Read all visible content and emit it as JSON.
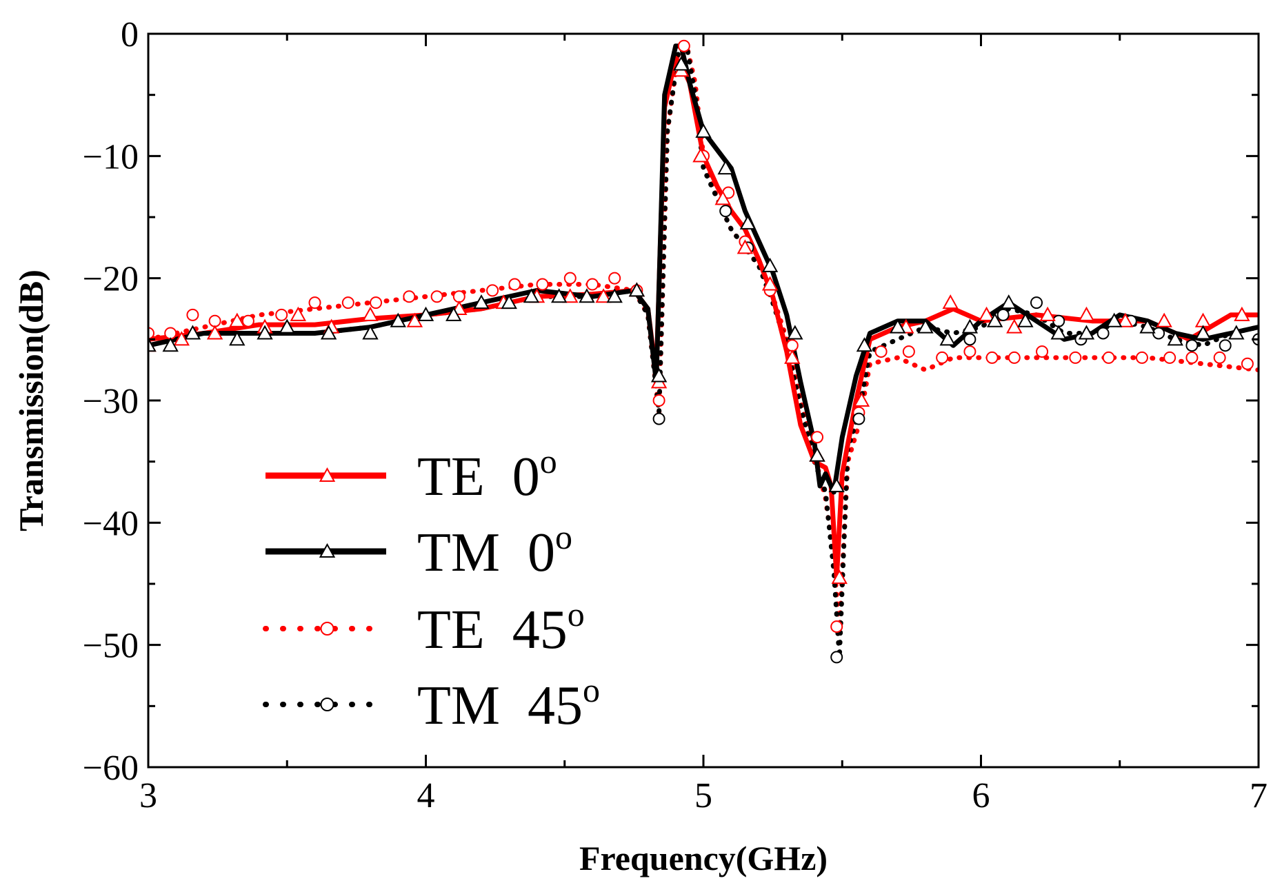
{
  "chart_data": {
    "type": "line",
    "title": "",
    "xlabel": "Frequency(GHz)",
    "ylabel": "Transmission(dB)",
    "xlim": [
      3,
      7
    ],
    "ylim": [
      -60,
      0
    ],
    "x_ticks": [
      3,
      4,
      5,
      6,
      7
    ],
    "x_tick_labels": [
      "3",
      "4",
      "5",
      "6",
      "7"
    ],
    "y_ticks": [
      0,
      -10,
      -20,
      -30,
      -40,
      -50,
      -60
    ],
    "y_tick_labels": [
      "0",
      "−10",
      "−20",
      "−30",
      "−40",
      "−50",
      "−60"
    ],
    "grid": false,
    "legend_position": "lower-left",
    "series": [
      {
        "name": "TE 0",
        "name_main": "TE  0",
        "name_sup": "o",
        "color": "#ff0000",
        "line": "solid",
        "marker": "triangle",
        "x": [
          3.0,
          3.2,
          3.4,
          3.6,
          3.8,
          4.0,
          4.2,
          4.4,
          4.6,
          4.75,
          4.8,
          4.83,
          4.86,
          4.9,
          4.92,
          4.95,
          5.0,
          5.05,
          5.1,
          5.15,
          5.2,
          5.25,
          5.3,
          5.35,
          5.4,
          5.44,
          5.46,
          5.48,
          5.5,
          5.55,
          5.6,
          5.7,
          5.8,
          5.9,
          6.0,
          6.2,
          6.4,
          6.6,
          6.75,
          6.9,
          7.0
        ],
        "y": [
          -25.0,
          -24.5,
          -23.8,
          -23.8,
          -23.3,
          -23.0,
          -22.5,
          -21.5,
          -21.3,
          -21.0,
          -22.5,
          -28.0,
          -6.0,
          -2.0,
          -2.5,
          -4.0,
          -10.0,
          -12.5,
          -14.5,
          -16.0,
          -18.5,
          -21.5,
          -26.0,
          -32.0,
          -35.0,
          -35.5,
          -37.0,
          -44.5,
          -36.0,
          -30.0,
          -25.0,
          -24.0,
          -23.5,
          -22.5,
          -23.5,
          -23.0,
          -23.5,
          -23.5,
          -25.0,
          -23.0,
          -23.0
        ],
        "marker_x": [
          3.0,
          3.12,
          3.24,
          3.32,
          3.42,
          3.54,
          3.66,
          3.8,
          3.96,
          4.12,
          4.28,
          4.4,
          4.52,
          4.64,
          4.76,
          4.84,
          4.92,
          4.99,
          5.07,
          5.15,
          5.24,
          5.32,
          5.41,
          5.49,
          5.57,
          5.73,
          5.89,
          6.02,
          6.12,
          6.24,
          6.38,
          6.52,
          6.66,
          6.8,
          6.94
        ],
        "marker_y": [
          -25.5,
          -25.0,
          -24.5,
          -23.5,
          -24.0,
          -23.0,
          -24.0,
          -23.0,
          -23.5,
          -22.5,
          -22.0,
          -21.5,
          -21.5,
          -21.5,
          -21.0,
          -28.5,
          -3.0,
          -10.0,
          -13.5,
          -17.5,
          -20.5,
          -26.5,
          -34.5,
          -44.5,
          -30.0,
          -24.0,
          -22.0,
          -23.0,
          -24.0,
          -23.0,
          -23.0,
          -23.5,
          -23.5,
          -23.5,
          -23.0
        ]
      },
      {
        "name": "TM 0",
        "name_main": "TM  0",
        "name_sup": "o",
        "color": "#000000",
        "line": "solid",
        "marker": "triangle",
        "x": [
          3.0,
          3.2,
          3.4,
          3.6,
          3.8,
          4.0,
          4.2,
          4.4,
          4.6,
          4.75,
          4.8,
          4.83,
          4.86,
          4.9,
          4.92,
          4.95,
          5.0,
          5.05,
          5.1,
          5.15,
          5.2,
          5.25,
          5.3,
          5.35,
          5.4,
          5.42,
          5.44,
          5.47,
          5.5,
          5.55,
          5.6,
          5.7,
          5.8,
          5.9,
          6.0,
          6.1,
          6.2,
          6.3,
          6.4,
          6.5,
          6.6,
          6.7,
          6.8,
          6.9,
          7.0
        ],
        "y": [
          -25.5,
          -24.5,
          -24.5,
          -24.5,
          -24.0,
          -23.0,
          -22.0,
          -21.0,
          -21.5,
          -21.0,
          -22.5,
          -28.5,
          -5.0,
          -1.0,
          -1.0,
          -4.0,
          -8.0,
          -9.5,
          -11.0,
          -14.5,
          -17.0,
          -19.5,
          -23.0,
          -28.5,
          -33.5,
          -37.0,
          -36.0,
          -37.5,
          -33.0,
          -28.0,
          -24.5,
          -23.5,
          -23.5,
          -25.5,
          -23.5,
          -22.0,
          -23.5,
          -25.0,
          -24.5,
          -23.0,
          -23.5,
          -24.5,
          -25.0,
          -24.5,
          -24.0
        ],
        "marker_x": [
          3.0,
          3.08,
          3.16,
          3.32,
          3.42,
          3.5,
          3.65,
          3.8,
          3.9,
          4.0,
          4.1,
          4.2,
          4.3,
          4.38,
          4.48,
          4.58,
          4.68,
          4.76,
          4.84,
          4.92,
          5.0,
          5.08,
          5.16,
          5.24,
          5.33,
          5.41,
          5.48,
          5.58,
          5.7,
          5.8,
          5.88,
          5.96,
          6.05,
          6.1,
          6.16,
          6.28,
          6.38,
          6.48,
          6.6,
          6.7,
          6.8,
          6.92
        ],
        "marker_y": [
          -25.5,
          -25.5,
          -24.5,
          -25.0,
          -24.5,
          -24.0,
          -24.5,
          -24.5,
          -23.5,
          -23.0,
          -23.0,
          -22.0,
          -22.0,
          -21.5,
          -21.5,
          -21.5,
          -21.5,
          -21.0,
          -28.0,
          -2.5,
          -8.0,
          -11.0,
          -15.5,
          -19.0,
          -24.5,
          -34.5,
          -37.0,
          -25.5,
          -24.0,
          -24.0,
          -25.0,
          -24.0,
          -23.5,
          -22.0,
          -23.5,
          -24.5,
          -24.5,
          -23.5,
          -24.0,
          -25.0,
          -24.5,
          -24.5
        ]
      },
      {
        "name": "TE 45",
        "name_main": "TE  45",
        "name_sup": "o",
        "color": "#ff0000",
        "line": "dotted",
        "marker": "circle",
        "x": [
          3.0,
          3.2,
          3.4,
          3.6,
          3.8,
          4.0,
          4.2,
          4.4,
          4.6,
          4.75,
          4.8,
          4.84,
          4.87,
          4.91,
          4.94,
          4.97,
          5.0,
          5.05,
          5.1,
          5.15,
          5.2,
          5.25,
          5.3,
          5.35,
          5.4,
          5.44,
          5.47,
          5.49,
          5.52,
          5.56,
          5.6,
          5.7,
          5.8,
          5.9,
          6.0,
          6.2,
          6.4,
          6.6,
          6.8,
          7.0
        ],
        "y": [
          -25.0,
          -24.0,
          -23.0,
          -22.5,
          -22.0,
          -21.5,
          -21.0,
          -20.5,
          -20.5,
          -21.0,
          -23.0,
          -31.0,
          -8.0,
          -1.5,
          -1.0,
          -4.0,
          -10.0,
          -13.5,
          -16.0,
          -17.5,
          -19.0,
          -21.5,
          -25.0,
          -30.0,
          -34.5,
          -38.0,
          -43.0,
          -49.0,
          -35.0,
          -32.0,
          -27.0,
          -26.5,
          -27.5,
          -26.5,
          -26.5,
          -26.5,
          -26.5,
          -26.5,
          -27.0,
          -27.5
        ],
        "marker_x": [
          3.0,
          3.08,
          3.16,
          3.24,
          3.36,
          3.48,
          3.6,
          3.72,
          3.82,
          3.94,
          4.04,
          4.12,
          4.24,
          4.32,
          4.42,
          4.52,
          4.6,
          4.68,
          4.76,
          4.84,
          4.93,
          5.0,
          5.09,
          5.15,
          5.24,
          5.32,
          5.41,
          5.48,
          5.56,
          5.64,
          5.74,
          5.86,
          5.96,
          6.04,
          6.12,
          6.22,
          6.34,
          6.46,
          6.58,
          6.68,
          6.76,
          6.86,
          6.96
        ],
        "marker_y": [
          -24.5,
          -24.5,
          -23.0,
          -23.5,
          -23.5,
          -23.0,
          -22.0,
          -22.0,
          -22.0,
          -21.5,
          -21.5,
          -21.5,
          -21.0,
          -20.5,
          -20.5,
          -20.0,
          -20.5,
          -20.0,
          -21.0,
          -30.0,
          -1.0,
          -10.0,
          -13.0,
          -17.0,
          -21.0,
          -25.5,
          -33.0,
          -48.5,
          -31.0,
          -26.0,
          -26.0,
          -26.5,
          -26.0,
          -26.5,
          -26.5,
          -26.0,
          -26.5,
          -26.5,
          -26.5,
          -26.5,
          -26.5,
          -26.5,
          -27.0
        ]
      },
      {
        "name": "TM 45",
        "name_main": "TM  45",
        "name_sup": "o",
        "color": "#000000",
        "line": "dotted",
        "marker": "circle",
        "x": [
          3.0,
          3.2,
          3.4,
          3.6,
          3.8,
          4.0,
          4.2,
          4.4,
          4.6,
          4.75,
          4.8,
          4.84,
          4.87,
          4.91,
          4.94,
          4.97,
          5.0,
          5.05,
          5.1,
          5.15,
          5.2,
          5.25,
          5.3,
          5.35,
          5.4,
          5.44,
          5.47,
          5.49,
          5.52,
          5.56,
          5.6,
          5.7,
          5.8,
          5.9,
          6.0,
          6.1,
          6.2,
          6.3,
          6.4,
          6.5,
          6.6,
          6.7,
          6.8,
          6.9,
          7.0
        ],
        "y": [
          -25.0,
          -24.5,
          -24.5,
          -24.5,
          -24.0,
          -23.0,
          -22.5,
          -21.5,
          -21.5,
          -21.0,
          -23.0,
          -31.0,
          -8.0,
          -1.5,
          -1.0,
          -5.0,
          -11.0,
          -13.5,
          -16.0,
          -17.5,
          -19.0,
          -22.0,
          -25.5,
          -30.5,
          -35.0,
          -37.5,
          -44.0,
          -51.0,
          -34.0,
          -31.0,
          -26.0,
          -25.0,
          -24.0,
          -24.5,
          -24.0,
          -22.5,
          -23.0,
          -24.5,
          -24.5,
          -23.5,
          -24.0,
          -25.0,
          -25.5,
          -24.5,
          -24.0
        ],
        "marker_x": [
          4.84,
          5.08,
          5.16,
          5.48,
          5.56,
          5.96,
          6.08,
          6.2,
          6.28,
          6.36,
          6.44,
          6.54,
          6.64,
          6.76,
          6.88,
          7.0
        ],
        "marker_y": [
          -31.5,
          -14.5,
          -17.5,
          -51.0,
          -31.5,
          -25.0,
          -23.0,
          -22.0,
          -23.5,
          -25.0,
          -24.5,
          -23.5,
          -24.5,
          -25.5,
          -25.5,
          -25.0
        ]
      }
    ]
  }
}
